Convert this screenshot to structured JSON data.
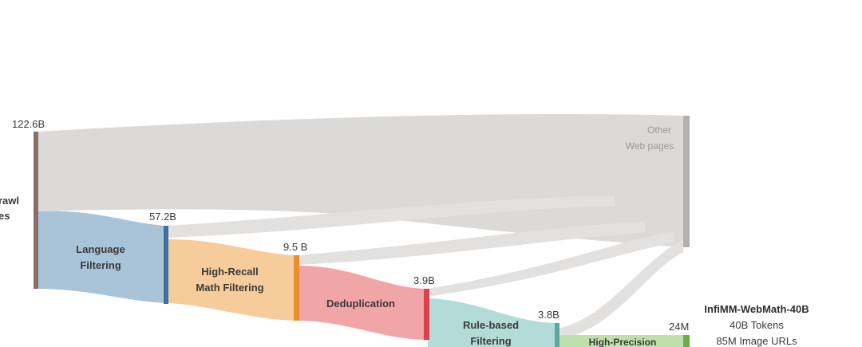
{
  "source_label_partial": [
    "rawl",
    "es"
  ],
  "values": {
    "start": "122.6B",
    "language": "57.2B",
    "math": "9.5 B",
    "dedup": "3.9B",
    "rule": "3.8B",
    "final": "24M"
  },
  "stages": {
    "language": [
      "Language",
      "Filtering"
    ],
    "math": [
      "High-Recall",
      "Math Filtering"
    ],
    "dedup": [
      "Deduplication"
    ],
    "rule": [
      "Rule-based",
      "Filtering"
    ],
    "precision": [
      "High-Precision"
    ]
  },
  "other": [
    "Other",
    "Web pages"
  ],
  "result": {
    "title": "InfiMM-WebMath-40B",
    "tokens": "40B Tokens",
    "images": "85M Image URLs"
  },
  "colors": {
    "source_bar": "#8a6e62",
    "gray_flow": "#dcdad9",
    "other_bar": "#b4b0ae",
    "language_fill": "#a9c3d9",
    "language_bar": "#3f6f9e",
    "math_fill": "#f6cc9b",
    "math_bar": "#e8902e",
    "dedup_fill": "#f2a5a7",
    "dedup_bar": "#d9424a",
    "rule_fill": "#b3dcd8",
    "rule_bar": "#5aa9a0",
    "precision_fill": "#bfe0aa",
    "precision_bar": "#6cae4e",
    "text": "#3a3a3a",
    "other_text": "#9a9796"
  }
}
